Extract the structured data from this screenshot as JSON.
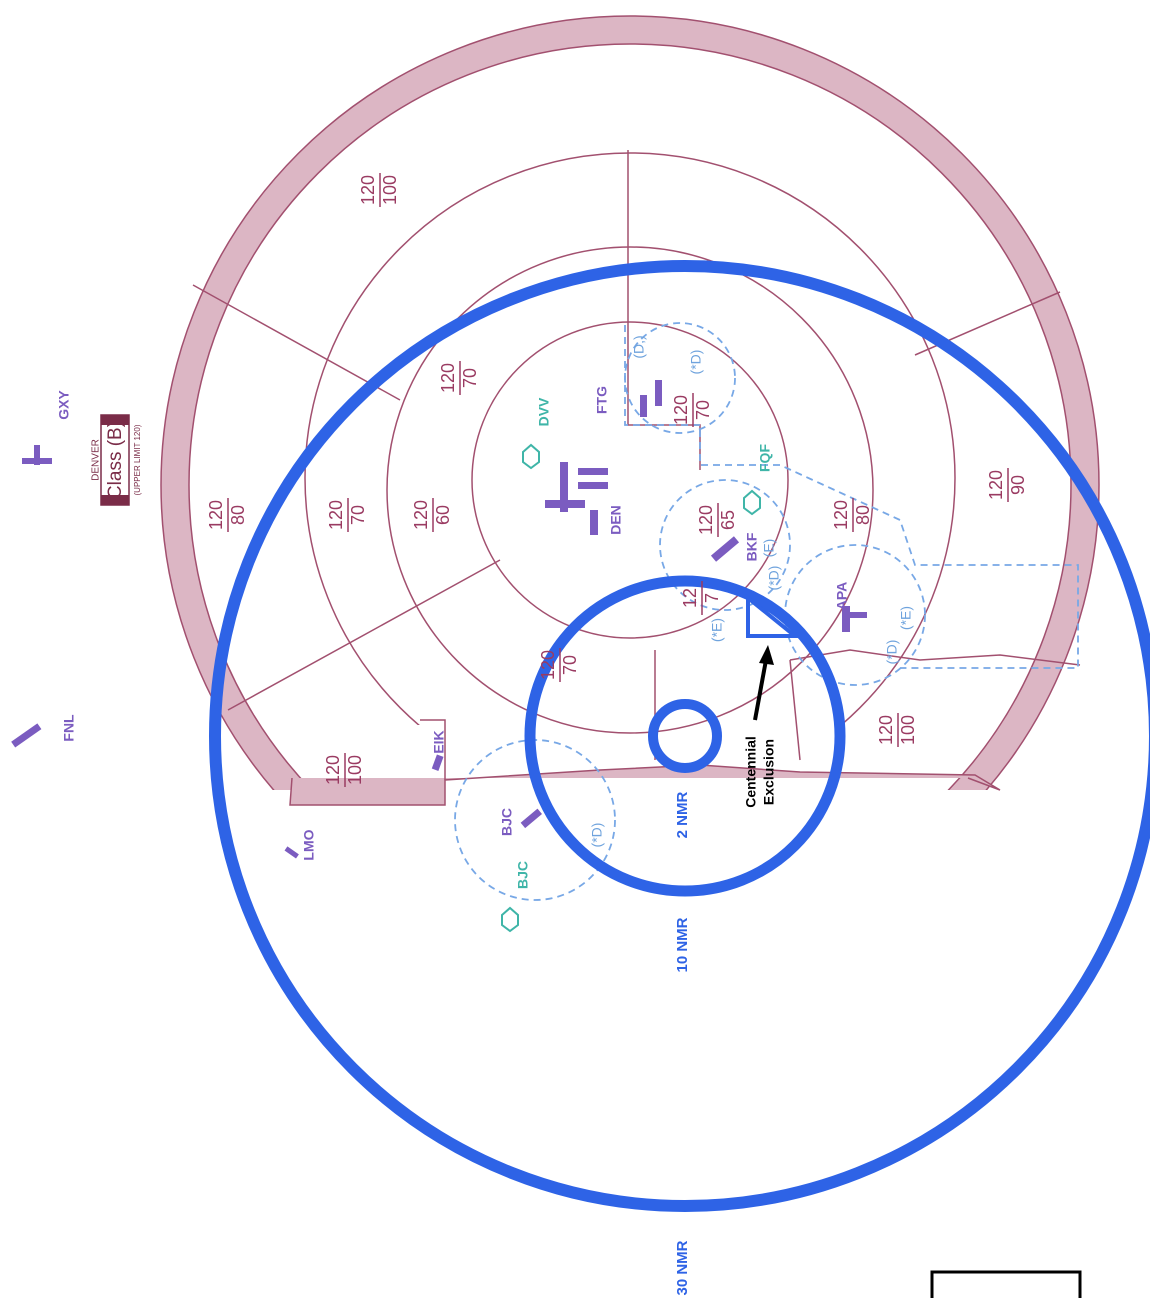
{
  "class_b": {
    "city": "DENVER",
    "class": "Class (B)",
    "upper_limit": "(UPPER LIMIT 120)"
  },
  "airports": [
    {
      "id": "GXY",
      "kind": "other"
    },
    {
      "id": "FNL",
      "kind": "other"
    },
    {
      "id": "LMO",
      "kind": "other"
    },
    {
      "id": "EIK",
      "kind": "other"
    },
    {
      "id": "BJC",
      "kind": "other"
    },
    {
      "id": "BJC",
      "kind": "vor"
    },
    {
      "id": "DVV",
      "kind": "vor"
    },
    {
      "id": "FTG",
      "kind": "other"
    },
    {
      "id": "DEN",
      "kind": "other"
    },
    {
      "id": "FQF",
      "kind": "vor"
    },
    {
      "id": "BKF",
      "kind": "other"
    },
    {
      "id": "APA",
      "kind": "other"
    }
  ],
  "altitudes": [
    {
      "ceiling": "120",
      "floor": "100"
    },
    {
      "ceiling": "120",
      "floor": "80"
    },
    {
      "ceiling": "120",
      "floor": "70"
    },
    {
      "ceiling": "120",
      "floor": "60"
    },
    {
      "ceiling": "120",
      "floor": "70"
    },
    {
      "ceiling": "120",
      "floor": "70"
    },
    {
      "ceiling": "120",
      "floor": "65"
    },
    {
      "ceiling": "120",
      "floor": "80"
    },
    {
      "ceiling": "120",
      "floor": "90"
    },
    {
      "ceiling": "120",
      "floor": "100"
    },
    {
      "ceiling": "120",
      "floor": "100"
    },
    {
      "ceiling": "120",
      "floor": "70"
    },
    {
      "ceiling": "12",
      "floor": "7"
    }
  ],
  "class_d_labels": [
    "(D,)",
    "(*D)",
    "(E)",
    "(*D)",
    "(*E)",
    "(*D)",
    "(*E)",
    "(*D)"
  ],
  "rings": [
    "2 NMR",
    "10 NMR",
    "30 NMR"
  ],
  "annotation": [
    "Centennial",
    "Exclusion"
  ]
}
